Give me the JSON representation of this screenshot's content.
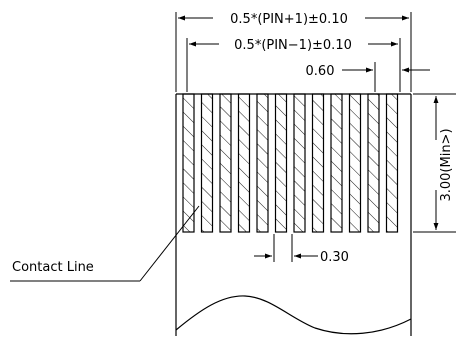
{
  "dimensions": {
    "overall_width": "0.5*(PIN+1)±0.10",
    "inner_width": "0.5*(PIN−1)±0.10",
    "contact_pitch": "0.60",
    "contact_width": "0.30",
    "contact_length": "3.00(Min>)"
  },
  "callouts": {
    "contact_line": "Contact Line"
  },
  "contact_count": 12
}
